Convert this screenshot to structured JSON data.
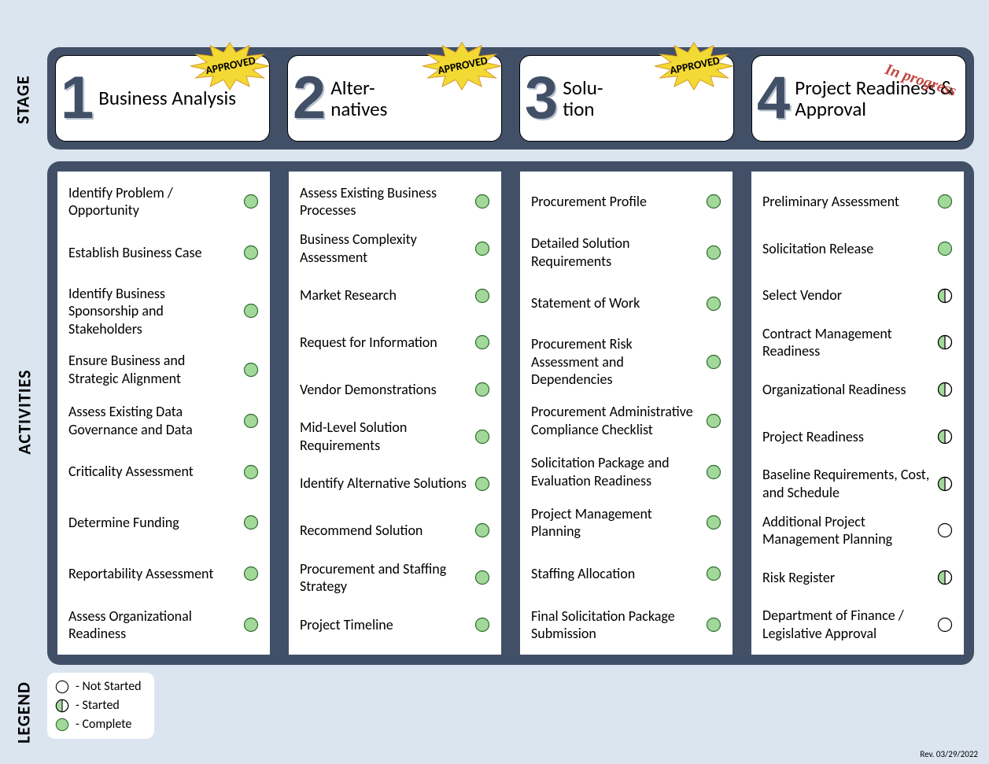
{
  "layout": {
    "page_bg": "#dbe5ef",
    "panel_bg": "#415067",
    "card_bg": "#ffffff",
    "text_color": "#000000"
  },
  "side_labels": {
    "stage": "STAGE",
    "activities": "ACTIVITIES",
    "legend": "LEGEND"
  },
  "burst": {
    "fill": "#f2d933",
    "stroke": "#d79b2a"
  },
  "status_colors": {
    "complete_fill": "#a2d99a",
    "complete_stroke": "#2d6b2d",
    "started_fill_left": "#a2d99a",
    "started_fill_right": "#ffffff",
    "started_stroke": "#000000",
    "notstarted_fill": "#ffffff",
    "notstarted_stroke": "#000000"
  },
  "stages": [
    {
      "num": "1",
      "title": "Business Analysis",
      "badge": "APPROVED",
      "badge_type": "burst"
    },
    {
      "num": "2",
      "title": "Alter-\nnatives",
      "badge": "APPROVED",
      "badge_type": "burst"
    },
    {
      "num": "3",
      "title": "Solu-\ntion",
      "badge": "APPROVED",
      "badge_type": "burst"
    },
    {
      "num": "4",
      "title": "Project Readiness & Approval",
      "badge": "In progress",
      "badge_type": "stamp"
    }
  ],
  "activities": [
    [
      {
        "label": "Identify Problem / Opportunity",
        "status": "complete"
      },
      {
        "label": "Establish Business Case",
        "status": "complete"
      },
      {
        "label": "Identify Business Sponsorship and Stakeholders",
        "status": "complete"
      },
      {
        "label": "Ensure Business and Strategic Alignment",
        "status": "complete"
      },
      {
        "label": "Assess Existing Data Governance and Data",
        "status": "complete"
      },
      {
        "label": "Criticality Assessment",
        "status": "complete"
      },
      {
        "label": "Determine Funding",
        "status": "complete"
      },
      {
        "label": "Reportability Assessment",
        "status": "complete"
      },
      {
        "label": "Assess Organizational Readiness",
        "status": "complete"
      }
    ],
    [
      {
        "label": "Assess Existing Business Processes",
        "status": "complete"
      },
      {
        "label": "Business Complexity Assessment",
        "status": "complete"
      },
      {
        "label": "Market Research",
        "status": "complete"
      },
      {
        "label": "Request for Information",
        "status": "complete"
      },
      {
        "label": "Vendor Demonstrations",
        "status": "complete"
      },
      {
        "label": "Mid-Level Solution Requirements",
        "status": "complete"
      },
      {
        "label": "Identify Alternative Solutions",
        "status": "complete"
      },
      {
        "label": "Recommend Solution",
        "status": "complete"
      },
      {
        "label": "Procurement and Staffing Strategy",
        "status": "complete"
      },
      {
        "label": "Project Timeline",
        "status": "complete"
      }
    ],
    [
      {
        "label": "Procurement Profile",
        "status": "complete"
      },
      {
        "label": "Detailed Solution Requirements",
        "status": "complete"
      },
      {
        "label": "Statement of Work",
        "status": "complete"
      },
      {
        "label": "Procurement Risk Assessment and Dependencies",
        "status": "complete"
      },
      {
        "label": "Procurement Administrative Compliance Checklist",
        "status": "complete"
      },
      {
        "label": "Solicitation Package and Evaluation Readiness",
        "status": "complete"
      },
      {
        "label": "Project Management Planning",
        "status": "complete"
      },
      {
        "label": "Staffing Allocation",
        "status": "complete"
      },
      {
        "label": "Final Solicitation Package Submission",
        "status": "complete"
      }
    ],
    [
      {
        "label": "Preliminary Assessment",
        "status": "complete"
      },
      {
        "label": "Solicitation Release",
        "status": "complete"
      },
      {
        "label": "Select Vendor",
        "status": "started"
      },
      {
        "label": "Contract Management Readiness",
        "status": "started"
      },
      {
        "label": "Organizational Readiness",
        "status": "started"
      },
      {
        "label": "Project Readiness",
        "status": "started"
      },
      {
        "label": "Baseline Requirements, Cost, and Schedule",
        "status": "started"
      },
      {
        "label": "Additional Project Management Planning",
        "status": "notstarted"
      },
      {
        "label": "Risk Register",
        "status": "started"
      },
      {
        "label": "Department of Finance / Legislative Approval",
        "status": "notstarted"
      }
    ]
  ],
  "legend": [
    {
      "status": "notstarted",
      "label": "Not Started"
    },
    {
      "status": "started",
      "label": "Started"
    },
    {
      "status": "complete",
      "label": "Complete"
    }
  ],
  "revision": "Rev. 03/29/2022"
}
